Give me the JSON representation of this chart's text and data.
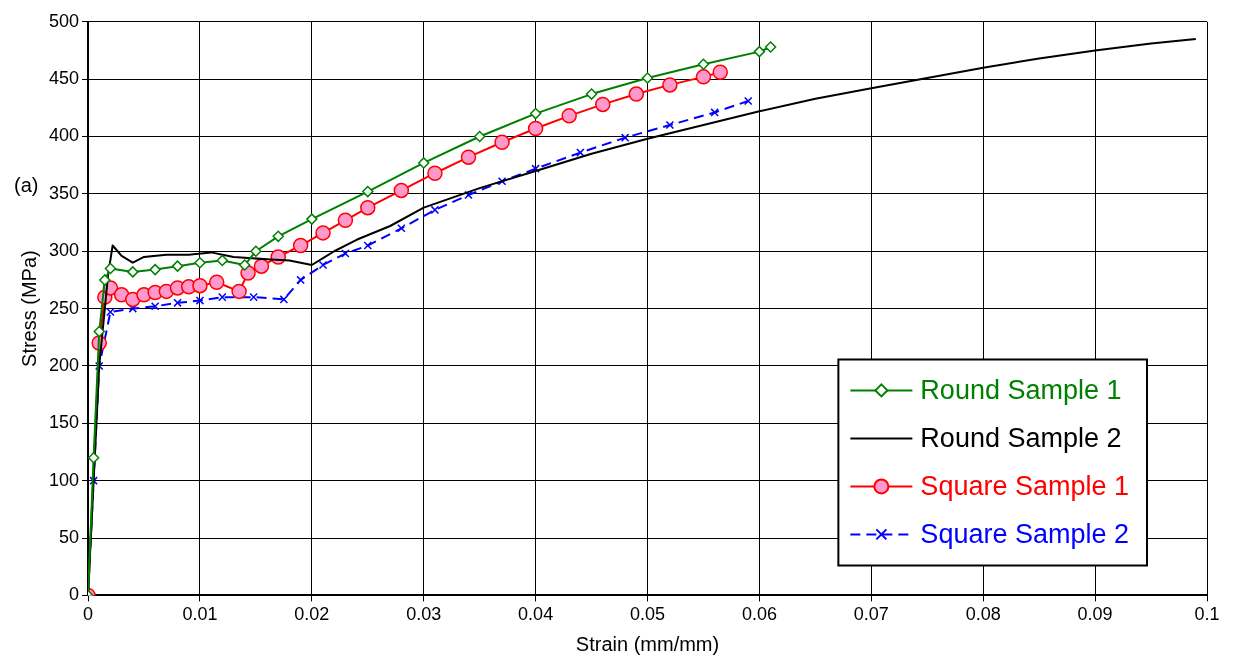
{
  "chart_data": {
    "type": "line",
    "xlabel": "Strain (mm/mm)",
    "ylabel": "Stress (MPa)",
    "annotations": [
      "(a)"
    ],
    "xlim": [
      0,
      0.1
    ],
    "xticks": [
      0,
      0.01,
      0.02,
      0.03,
      0.04,
      0.05,
      0.06,
      0.07,
      0.08,
      0.09,
      0.1
    ],
    "ylim": [
      0,
      500
    ],
    "yticks": [
      0,
      50,
      100,
      150,
      200,
      250,
      300,
      350,
      400,
      450,
      500
    ],
    "grid": true,
    "legend": "bottom right",
    "series": [
      {
        "name": "Round Sample 1",
        "color": "#008000",
        "marker": "diamond",
        "line_style": "solid",
        "x": [
          0,
          0.0005,
          0.001,
          0.0015,
          0.002,
          0.004,
          0.006,
          0.008,
          0.01,
          0.012,
          0.014,
          0.015,
          0.017,
          0.02,
          0.025,
          0.03,
          0.035,
          0.04,
          0.045,
          0.05,
          0.055,
          0.06,
          0.061
        ],
        "values": [
          0,
          120,
          230,
          275,
          285,
          282,
          284,
          287,
          290,
          292,
          288,
          300,
          313,
          328,
          352,
          377,
          400,
          420,
          437,
          451,
          463,
          474,
          478
        ]
      },
      {
        "name": "Round Sample 2",
        "color": "#000000",
        "marker": "none",
        "line_style": "solid",
        "x": [
          0,
          0.001,
          0.0018,
          0.0022,
          0.003,
          0.004,
          0.005,
          0.007,
          0.009,
          0.011,
          0.013,
          0.016,
          0.018,
          0.02,
          0.022,
          0.024,
          0.027,
          0.03,
          0.035,
          0.04,
          0.045,
          0.05,
          0.055,
          0.06,
          0.065,
          0.07,
          0.075,
          0.08,
          0.085,
          0.09,
          0.095,
          0.099
        ],
        "values": [
          0,
          200,
          280,
          305,
          296,
          290,
          295,
          297,
          297,
          299,
          295,
          293,
          292,
          288,
          300,
          310,
          322,
          338,
          355,
          370,
          385,
          398,
          410,
          422,
          433,
          442,
          451,
          460,
          468,
          475,
          481,
          485
        ]
      },
      {
        "name": "Square Sample 1",
        "color": "#ff0000",
        "marker": "circle",
        "line_style": "solid",
        "x": [
          0,
          0.001,
          0.0015,
          0.002,
          0.003,
          0.004,
          0.005,
          0.006,
          0.007,
          0.008,
          0.009,
          0.01,
          0.0115,
          0.0135,
          0.0143,
          0.0155,
          0.017,
          0.019,
          0.021,
          0.023,
          0.025,
          0.028,
          0.031,
          0.034,
          0.037,
          0.04,
          0.043,
          0.046,
          0.049,
          0.052,
          0.055,
          0.0565
        ],
        "values": [
          0,
          220,
          260,
          268,
          262,
          258,
          262,
          264,
          265,
          268,
          269,
          270,
          273,
          265,
          281,
          287,
          295,
          305,
          316,
          327,
          338,
          353,
          368,
          382,
          395,
          407,
          418,
          428,
          437,
          445,
          452,
          456
        ]
      },
      {
        "name": "Square Sample 2",
        "color": "#0000ff",
        "marker": "cross",
        "line_style": "dashed",
        "x": [
          0,
          0.0005,
          0.001,
          0.002,
          0.004,
          0.006,
          0.008,
          0.01,
          0.012,
          0.0148,
          0.0175,
          0.019,
          0.021,
          0.023,
          0.025,
          0.028,
          0.031,
          0.034,
          0.037,
          0.04,
          0.044,
          0.048,
          0.052,
          0.056,
          0.059
        ],
        "values": [
          0,
          100,
          200,
          247,
          250,
          252,
          255,
          257,
          260,
          260,
          258,
          275,
          288,
          298,
          305,
          320,
          336,
          349,
          361,
          372,
          386,
          399,
          410,
          421,
          431
        ]
      }
    ]
  }
}
